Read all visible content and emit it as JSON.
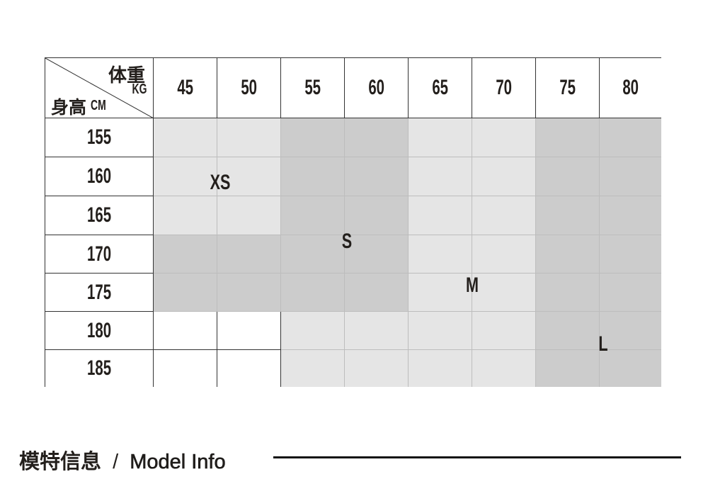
{
  "corner": {
    "weight_label": "体重",
    "weight_unit": "KG",
    "height_label": "身高",
    "height_unit": "CM"
  },
  "weights": [
    "45",
    "50",
    "55",
    "60",
    "65",
    "70",
    "75",
    "80"
  ],
  "heights": [
    "155",
    "160",
    "165",
    "170",
    "175",
    "180",
    "185"
  ],
  "colors": {
    "light": "#e5e5e5",
    "dark": "#cccccc",
    "none": "#ffffff"
  },
  "cell_shades": [
    [
      "light",
      "light",
      "dark",
      "dark",
      "light",
      "light",
      "dark",
      "dark"
    ],
    [
      "light",
      "light",
      "dark",
      "dark",
      "light",
      "light",
      "dark",
      "dark"
    ],
    [
      "light",
      "light",
      "dark",
      "dark",
      "light",
      "light",
      "dark",
      "dark"
    ],
    [
      "dark",
      "dark",
      "dark",
      "dark",
      "light",
      "light",
      "dark",
      "dark"
    ],
    [
      "dark",
      "dark",
      "dark",
      "dark",
      "light",
      "light",
      "dark",
      "dark"
    ],
    [
      "none",
      "none",
      "light",
      "light",
      "light",
      "light",
      "dark",
      "dark"
    ],
    [
      "none",
      "none",
      "light",
      "light",
      "light",
      "light",
      "dark",
      "dark"
    ]
  ],
  "sizes": [
    {
      "label": "XS"
    },
    {
      "label": "S"
    },
    {
      "label": "M"
    },
    {
      "label": "L"
    }
  ],
  "footer": {
    "title_cn": "模特信息",
    "separator": "/",
    "title_en": "Model Info"
  }
}
